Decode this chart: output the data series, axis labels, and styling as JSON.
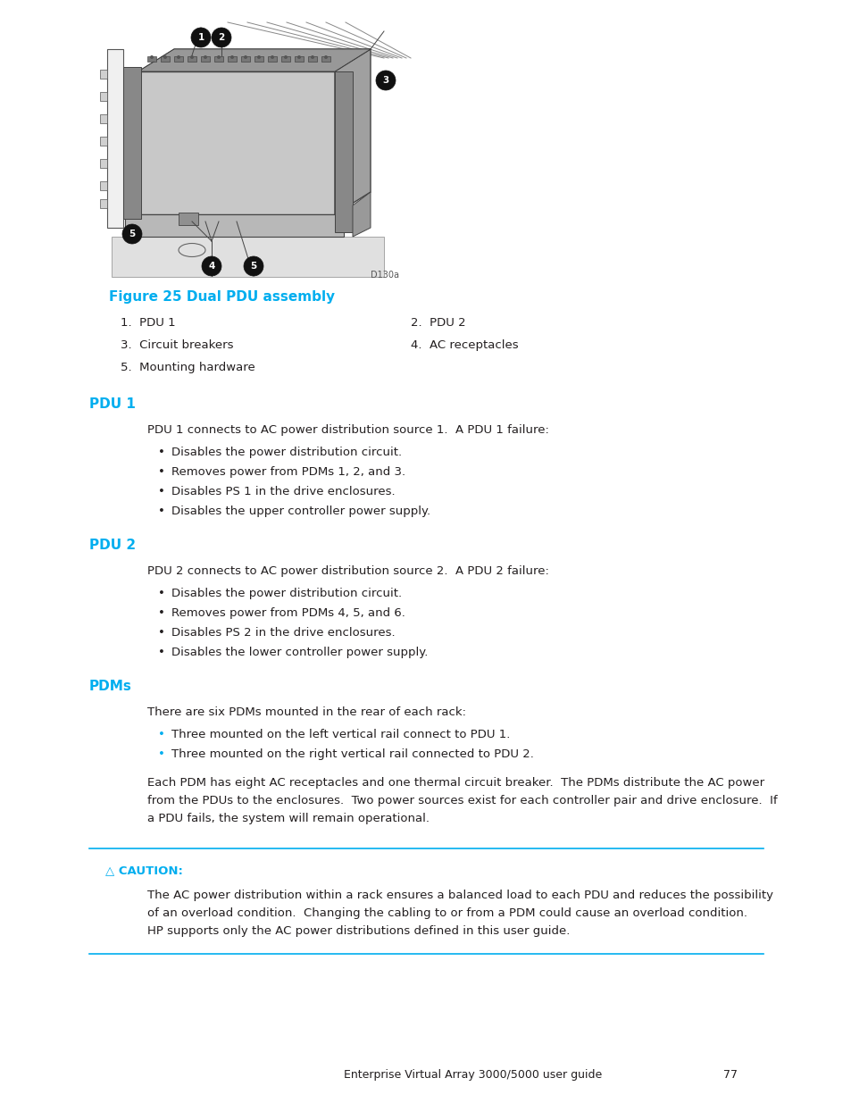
{
  "bg_color": "#ffffff",
  "cyan_color": "#00AEEF",
  "black_color": "#231F20",
  "figure_caption": "Figure 25 Dual PDU assembly",
  "fig_items": [
    [
      "1.  PDU 1",
      "2.  PDU 2"
    ],
    [
      "3.  Circuit breakers",
      "4.  AC receptacles"
    ],
    [
      "5.  Mounting hardware",
      ""
    ]
  ],
  "section1_heading": "PDU 1",
  "section1_intro": "PDU 1 connects to AC power distribution source 1.  A PDU 1 failure:",
  "section1_bullets": [
    "Disables the power distribution circuit.",
    "Removes power from PDMs 1, 2, and 3.",
    "Disables PS 1 in the drive enclosures.",
    "Disables the upper controller power supply."
  ],
  "section2_heading": "PDU 2",
  "section2_intro": "PDU 2 connects to AC power distribution source 2.  A PDU 2 failure:",
  "section2_bullets": [
    "Disables the power distribution circuit.",
    "Removes power from PDMs 4, 5, and 6.",
    "Disables PS 2 in the drive enclosures.",
    "Disables the lower controller power supply."
  ],
  "section3_heading": "PDMs",
  "section3_intro": "There are six PDMs mounted in the rear of each rack:",
  "section3_bullets": [
    "Three mounted on the left vertical rail connect to PDU 1.",
    "Three mounted on the right vertical rail connected to PDU 2."
  ],
  "section3_para1": "Each PDM has eight AC receptacles and one thermal circuit breaker.  The PDMs distribute the AC power",
  "section3_para2": "from the PDUs to the enclosures.  Two power sources exist for each controller pair and drive enclosure.  If",
  "section3_para3": "a PDU fails, the system will remain operational.",
  "caution_label": "△ CAUTION:",
  "caution_lines": [
    "The AC power distribution within a rack ensures a balanced load to each PDU and reduces the possibility",
    "of an overload condition.  Changing the cabling to or from a PDM could cause an overload condition.",
    "HP supports only the AC power distributions defined in this user guide."
  ],
  "footer_text": "Enterprise Virtual Array 3000/5000 user guide",
  "footer_page": "77",
  "image_code": "D130a"
}
